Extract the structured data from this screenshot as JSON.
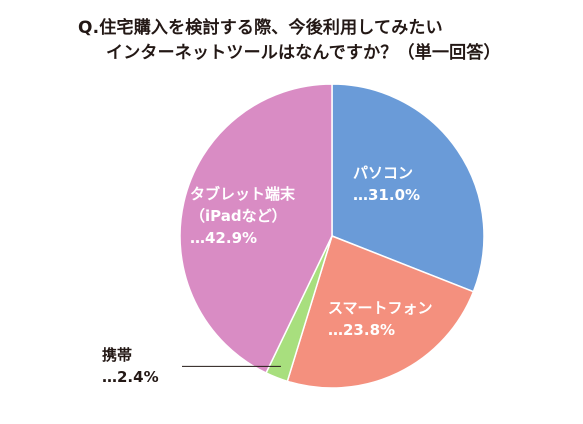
{
  "title": {
    "line1": "Q.住宅購入を検討する際、今後利用してみたい",
    "line2": "インターネットツールはなんですか？（単一回答）"
  },
  "chart_data": {
    "type": "pie",
    "title": "Q.住宅購入を検討する際、今後利用してみたいインターネットツールはなんですか？（単一回答）",
    "start": "12 o'clock, clockwise",
    "slices": [
      {
        "name": "パソコン",
        "value": 31.0,
        "label_lines": [
          "パソコン",
          "…31.0%"
        ],
        "color": "#6a9bd8"
      },
      {
        "name": "スマートフォン",
        "value": 23.8,
        "label_lines": [
          "スマートフォン",
          "…23.8%"
        ],
        "color": "#f4907e"
      },
      {
        "name": "携帯",
        "value": 2.4,
        "label_lines": [
          "携帯",
          "…2.4%"
        ],
        "color": "#a8df7e"
      },
      {
        "name": "タブレット端末（iPadなど）",
        "value": 42.9,
        "label_lines": [
          "タブレット端末",
          "（iPadなど）",
          "…42.9%"
        ],
        "color": "#d98cc4"
      }
    ]
  }
}
